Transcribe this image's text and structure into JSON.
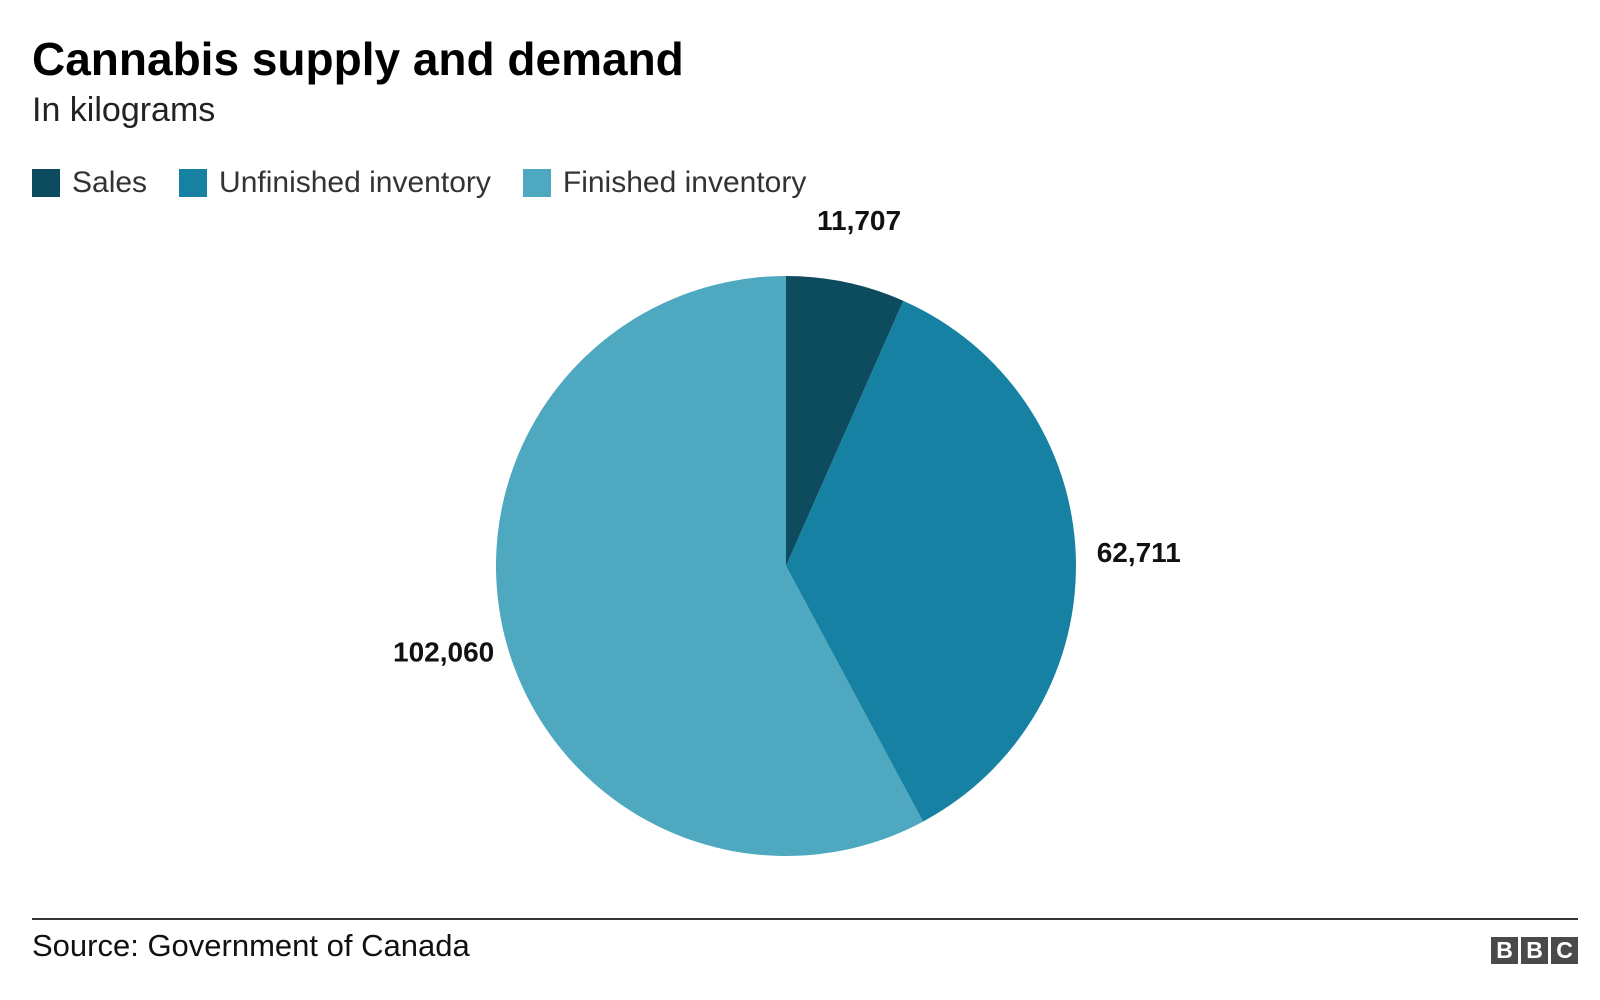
{
  "header": {
    "title": "Cannabis supply and demand",
    "subtitle": "In kilograms"
  },
  "legend": {
    "items": [
      {
        "label": "Sales",
        "color": "#0d4c5f"
      },
      {
        "label": "Unfinished inventory",
        "color": "#1681a3"
      },
      {
        "label": "Finished inventory",
        "color": "#4da8c0"
      }
    ]
  },
  "chart_data": {
    "type": "pie",
    "title": "Cannabis supply and demand",
    "subtitle": "In kilograms",
    "categories": [
      "Sales",
      "Unfinished inventory",
      "Finished inventory"
    ],
    "values": [
      11707,
      62711,
      102060
    ],
    "data_labels": [
      "11,707",
      "62,711",
      "102,060"
    ],
    "colors": [
      "#0d4c5f",
      "#1681a3",
      "#4da8c0"
    ],
    "start_angle": "12 o'clock",
    "direction": "clockwise",
    "legend_position": "top-left"
  },
  "footer": {
    "source": "Source: Government of Canada",
    "logo": [
      "B",
      "B",
      "C"
    ]
  }
}
